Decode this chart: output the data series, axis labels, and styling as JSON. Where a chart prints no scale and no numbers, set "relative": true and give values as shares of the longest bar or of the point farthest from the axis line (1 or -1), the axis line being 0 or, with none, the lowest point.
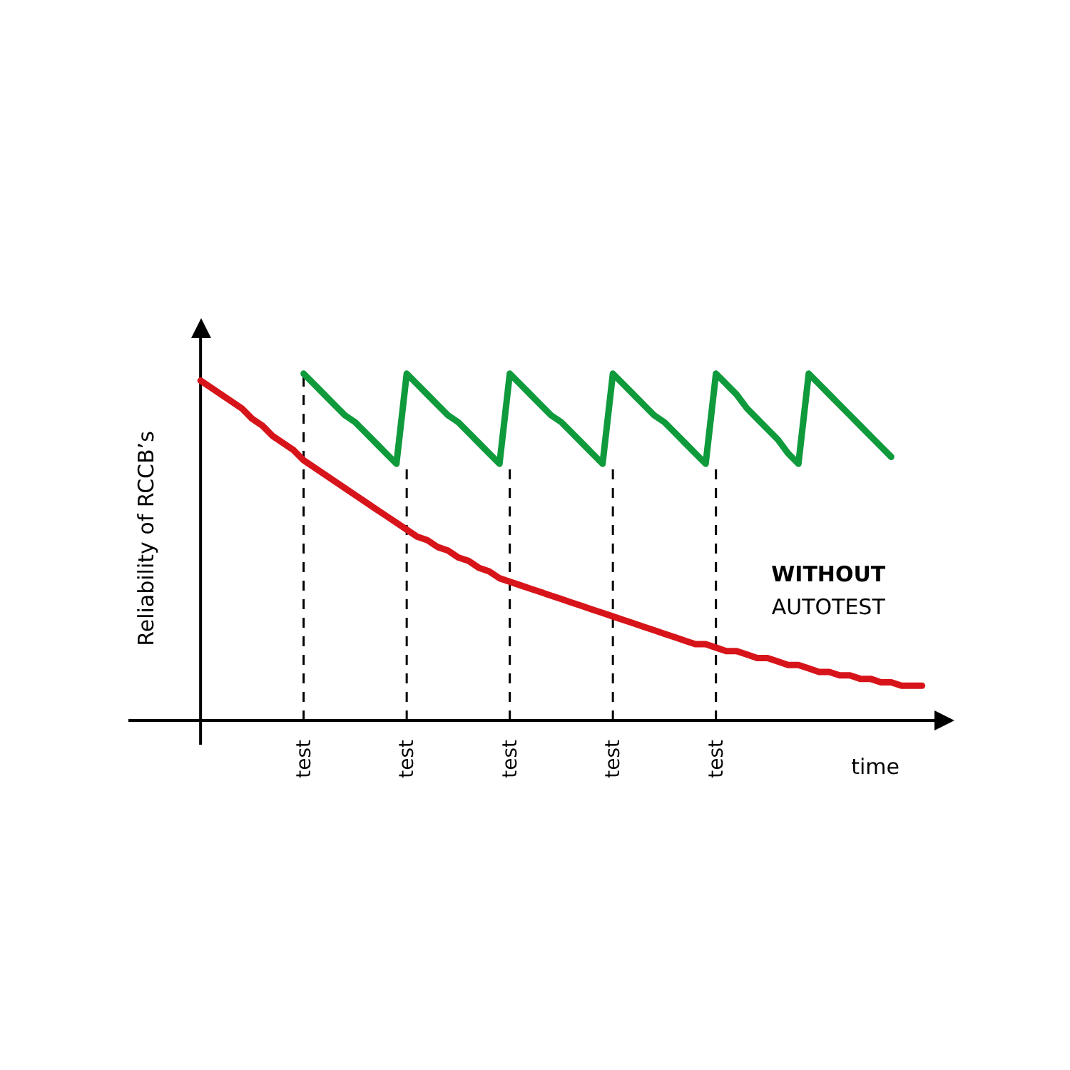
{
  "chart_data": {
    "type": "line",
    "relative": true,
    "xlabel": "time",
    "ylabel": "Reliability of RCCB’s",
    "tick_labels": "x",
    "grid": "x",
    "legend": false,
    "categories": [
      null,
      null,
      null,
      null,
      null,
      null,
      null,
      null,
      null,
      null,
      "test",
      null,
      null,
      null,
      null,
      null,
      null,
      null,
      null,
      null,
      "test",
      null,
      null,
      null,
      null,
      null,
      null,
      null,
      null,
      null,
      "test",
      null,
      null,
      null,
      null,
      null,
      null,
      null,
      null,
      null,
      "test",
      null,
      null,
      null,
      null,
      null,
      null,
      null,
      null,
      null,
      "test",
      null,
      null,
      null,
      null,
      null,
      null,
      null,
      null,
      null,
      null,
      null,
      null,
      null,
      null,
      null,
      null,
      null,
      null,
      null,
      null
    ],
    "series": [
      {
        "name": "WITHOUT AUTOTEST",
        "color": "#d7141a",
        "values": [
          0.98,
          0.96,
          0.94,
          0.92,
          0.9,
          0.87,
          0.85,
          0.82,
          0.8,
          0.78,
          0.75,
          0.73,
          0.71,
          0.69,
          0.67,
          0.65,
          0.63,
          0.61,
          0.59,
          0.57,
          0.55,
          0.53,
          0.52,
          0.5,
          0.49,
          0.47,
          0.46,
          0.44,
          0.43,
          0.41,
          0.4,
          0.39,
          0.38,
          0.37,
          0.36,
          0.35,
          0.34,
          0.33,
          0.32,
          0.31,
          0.3,
          0.29,
          0.28,
          0.27,
          0.26,
          0.25,
          0.24,
          0.23,
          0.22,
          0.22,
          0.21,
          0.2,
          0.2,
          0.19,
          0.18,
          0.18,
          0.17,
          0.16,
          0.16,
          0.15,
          0.14,
          0.14,
          0.13,
          0.13,
          0.12,
          0.12,
          0.11,
          0.11,
          0.1,
          0.1,
          0.1
        ]
      },
      {
        "color": "#0f9a3c",
        "values": [
          null,
          null,
          null,
          null,
          null,
          null,
          null,
          null,
          null,
          null,
          1,
          0.97,
          0.94,
          0.91,
          0.88,
          0.86,
          0.83,
          0.8,
          0.77,
          0.74,
          1,
          0.97,
          0.94,
          0.91,
          0.88,
          0.86,
          0.83,
          0.8,
          0.77,
          0.74,
          1,
          0.97,
          0.94,
          0.91,
          0.88,
          0.86,
          0.83,
          0.8,
          0.77,
          0.74,
          1,
          0.97,
          0.94,
          0.91,
          0.88,
          0.86,
          0.83,
          0.8,
          0.77,
          0.74,
          1,
          0.97,
          0.94,
          0.9,
          0.87,
          0.84,
          0.81,
          0.77,
          0.74,
          1,
          0.97,
          0.94,
          0.91,
          0.88,
          0.85,
          0.82,
          0.79,
          0.76,
          null,
          null,
          null
        ]
      }
    ]
  }
}
